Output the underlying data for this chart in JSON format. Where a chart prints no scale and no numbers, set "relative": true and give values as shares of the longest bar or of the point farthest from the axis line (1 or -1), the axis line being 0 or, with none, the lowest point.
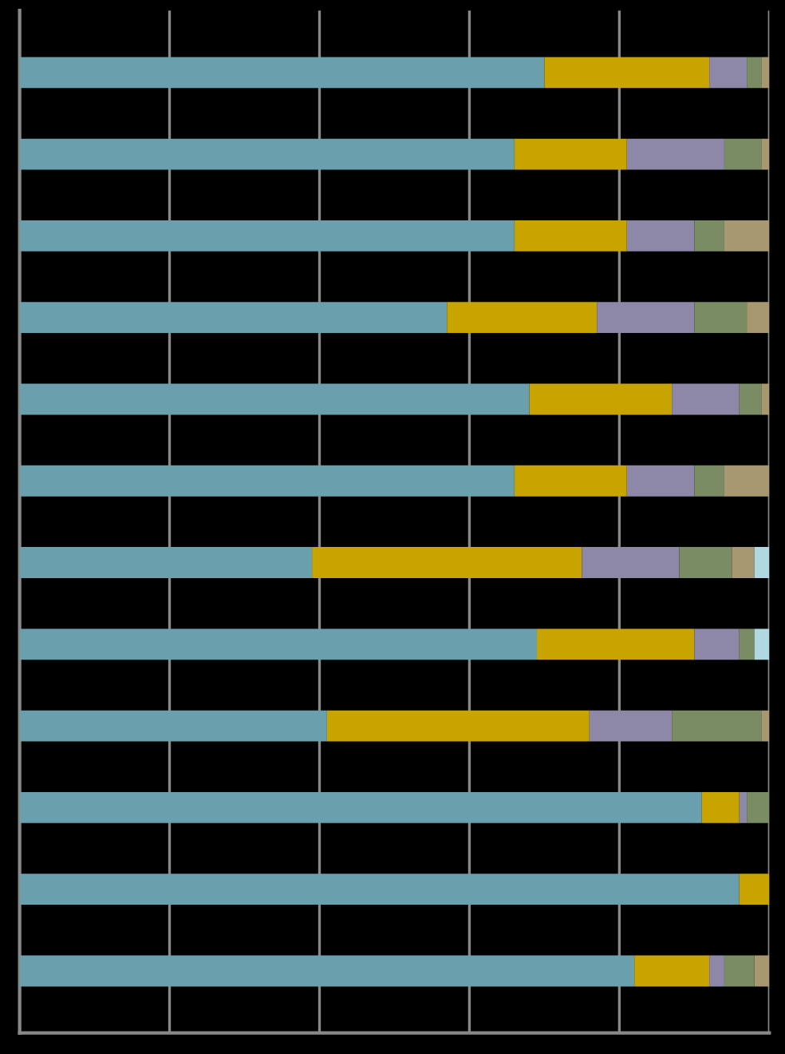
{
  "chart_data": {
    "type": "bar",
    "orientation": "horizontal",
    "stacked": true,
    "relative": true,
    "grid": "x",
    "legend": false,
    "categories": [
      null,
      null,
      null,
      null,
      null,
      null,
      null,
      null,
      null,
      null,
      null,
      null
    ],
    "series": [
      {
        "color": "#6a9fae",
        "values": [
          0.7,
          0.66,
          0.66,
          0.57,
          0.68,
          0.66,
          0.39,
          0.69,
          0.41,
          0.91,
          0.96,
          0.82
        ]
      },
      {
        "color": "#c8a400",
        "values": [
          0.22,
          0.15,
          0.15,
          0.2,
          0.19,
          0.15,
          0.36,
          0.21,
          0.35,
          0.05,
          0.04,
          0.1
        ]
      },
      {
        "color": "#8e88a8",
        "values": [
          0.05,
          0.13,
          0.09,
          0.13,
          0.09,
          0.09,
          0.13,
          0.06,
          0.11,
          0.01,
          0,
          0.02
        ]
      },
      {
        "color": "#7a8c64",
        "values": [
          0.02,
          0.05,
          0.04,
          0.07,
          0.03,
          0.04,
          0.07,
          0.02,
          0.12,
          0.03,
          0,
          0.04
        ]
      },
      {
        "color": "#a89870",
        "values": [
          0.01,
          0.01,
          0.06,
          0.03,
          0.01,
          0.06,
          0.03,
          0,
          0.01,
          0,
          0,
          0.02
        ]
      },
      {
        "color": "#b0d8e0",
        "values": [
          0,
          0,
          0,
          0,
          0,
          0,
          0.02,
          0.02,
          0,
          0,
          0,
          0
        ]
      }
    ]
  }
}
